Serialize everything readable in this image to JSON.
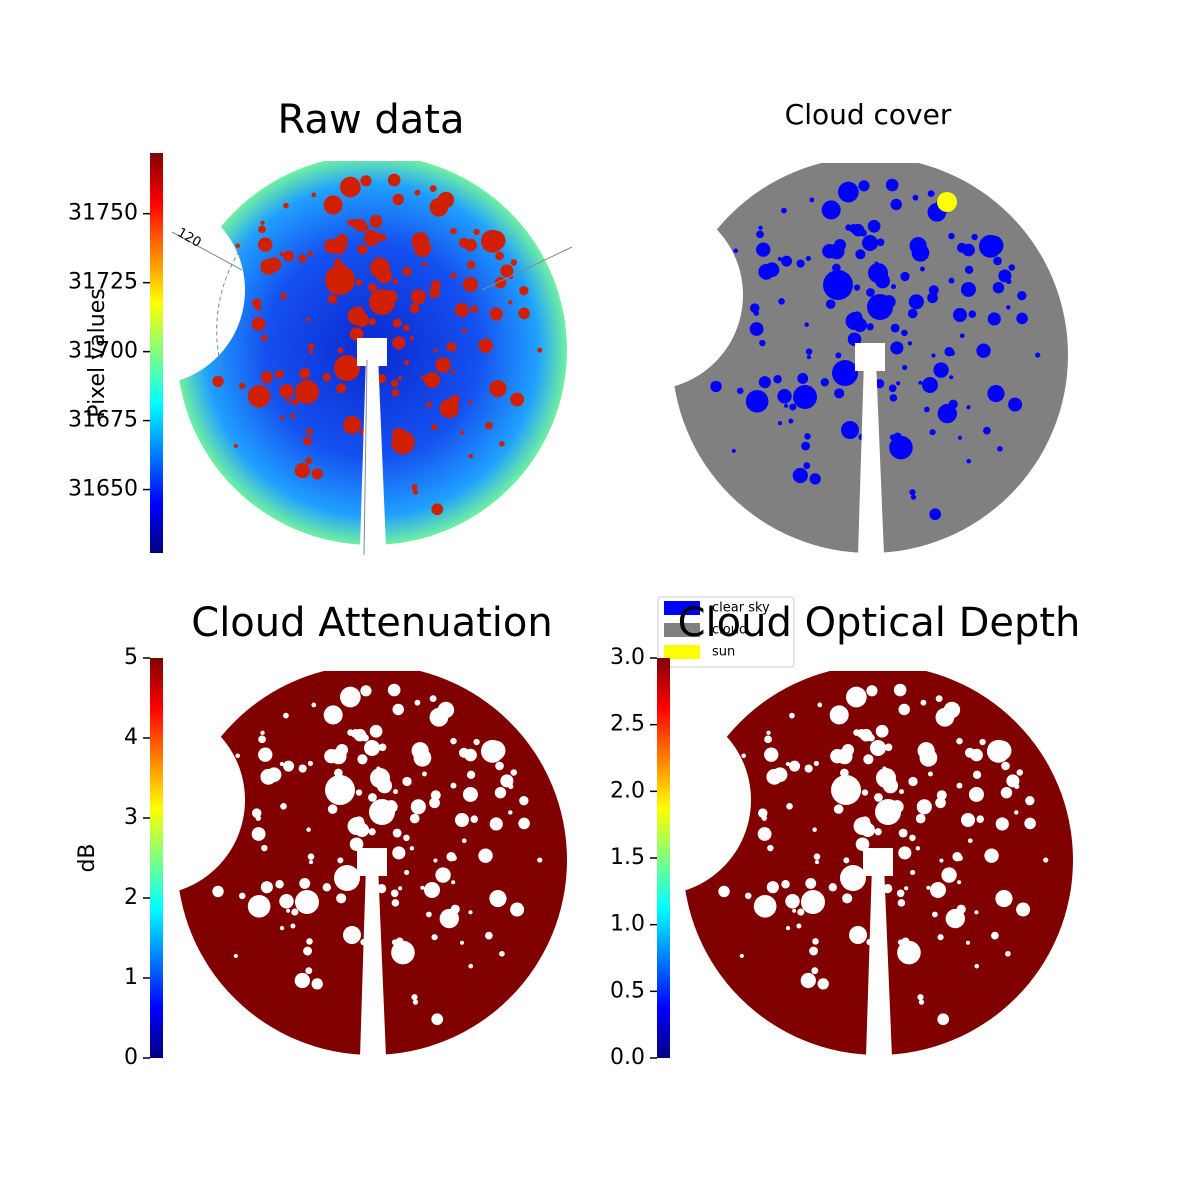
{
  "chart_data": [
    {
      "type": "image",
      "title": "Raw data",
      "colorbar_label": "Pixel values",
      "colormap": "jet",
      "ylim": [
        31627,
        31772
      ],
      "yticks": [
        31650,
        31675,
        31700,
        31725,
        31750
      ],
      "annotations": [
        "120"
      ]
    },
    {
      "type": "mask",
      "title": "Cloud cover",
      "legend": "lower left",
      "series": [
        {
          "name": "clear sky",
          "color": "#0000ff"
        },
        {
          "name": "cloud",
          "color": "#808080"
        },
        {
          "name": "sun",
          "color": "#ffff00"
        }
      ]
    },
    {
      "type": "image",
      "title": "Cloud Attenuation",
      "colorbar_label": "dB",
      "colormap": "jet",
      "ylim": [
        0,
        5
      ],
      "yticks": [
        0,
        1,
        2,
        3,
        4,
        5
      ]
    },
    {
      "type": "image",
      "title": "Cloud Optical Depth",
      "colormap": "jet",
      "ylim": [
        0,
        3
      ],
      "yticks": [
        {
          "value": 0,
          "label": "0.0"
        },
        {
          "value": 0.5,
          "label": "0.5"
        },
        {
          "value": 1,
          "label": "1.0"
        },
        {
          "value": 1.5,
          "label": "1.5"
        },
        {
          "value": 2,
          "label": "2.0"
        },
        {
          "value": 2.5,
          "label": "2.5"
        },
        {
          "value": 3,
          "label": "3.0"
        }
      ]
    }
  ]
}
